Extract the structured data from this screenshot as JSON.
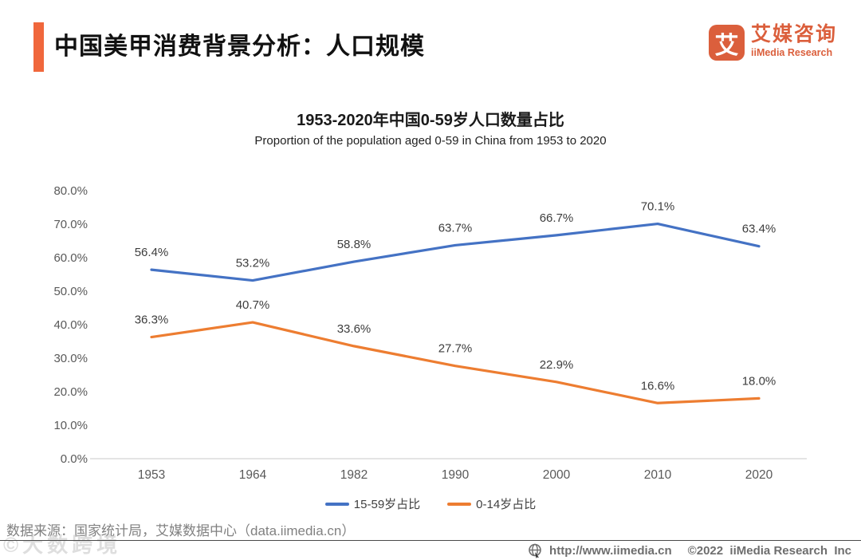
{
  "header": {
    "title": "中国美甲消费背景分析：人口规模",
    "accent_color": "#F0673C",
    "logo": {
      "glyph": "艾",
      "name_cn": "艾媒咨询",
      "name_en": "iiMedia Research",
      "brand_color": "#DB5F3C"
    }
  },
  "chart_data": {
    "type": "line",
    "title": "1953-2020年中国0-59岁人口数量占比",
    "subtitle": "Proportion of the population aged 0-59 in China from 1953 to 2020",
    "categories": [
      "1953",
      "1964",
      "1982",
      "1990",
      "2000",
      "2010",
      "2020"
    ],
    "series": [
      {
        "name": "15-59岁占比",
        "color": "#4472C4",
        "values": [
          56.4,
          53.2,
          58.8,
          63.7,
          66.7,
          70.1,
          63.4
        ]
      },
      {
        "name": "0-14岁占比",
        "color": "#ED7D31",
        "values": [
          36.3,
          40.7,
          33.6,
          27.7,
          22.9,
          16.6,
          18.0
        ]
      }
    ],
    "xlabel": "",
    "ylabel": "",
    "ylim": [
      0,
      80
    ],
    "ytick_step": 10,
    "ytick_suffix": "%",
    "grid": false,
    "legend_position": "bottom",
    "data_labels": true
  },
  "footer": {
    "source": "数据来源：国家统计局，艾媒数据中心（data.iimedia.cn）",
    "watermark_prefix": "©",
    "watermark": "大数跨境",
    "website": "http://www.iimedia.cn",
    "copyright": "©2022  iiMedia Research  Inc"
  }
}
